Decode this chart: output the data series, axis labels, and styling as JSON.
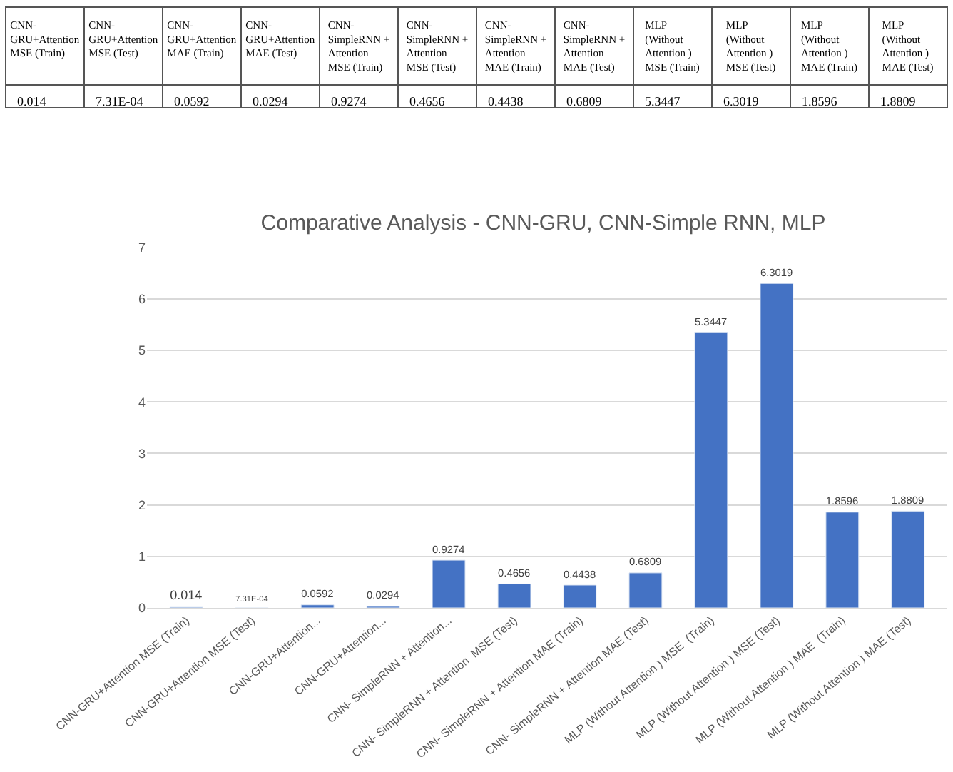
{
  "chart_data": [
    {
      "type": "other",
      "categories": [
        "CNN-GRU+Attention MSE (Train)",
        "CNN-GRU+Attention MSE (Test)",
        "CNN-GRU+Attention MAE (Train)",
        "CNN-GRU+Attention MAE (Test)",
        "CNN-SimpleRNN + Attention MSE (Train)",
        "CNN-SimpleRNN + Attention MSE (Test)",
        "CNN-SimpleRNN + Attention MAE (Train)",
        "CNN-SimpleRNN + Attention MAE (Test)",
        "MLP (Without Attention ) MSE (Train)",
        "MLP (Without Attention ) MSE (Test)",
        "MLP (Without Attention ) MAE (Train)",
        "MLP (Without Attention ) MAE (Test)"
      ],
      "values": [
        0.014,
        0.000731,
        0.0592,
        0.0294,
        0.9274,
        0.4656,
        0.4438,
        0.6809,
        5.3447,
        6.3019,
        1.8596,
        1.8809
      ],
      "value_labels": [
        "0.014",
        "7.31E-04",
        "0.0592",
        "0.0294",
        "0.9274",
        "0.4656",
        "0.4438",
        "0.6809",
        "5.3447",
        "6.3019",
        "1.8596",
        "1.8809"
      ]
    },
    {
      "type": "bar",
      "title": "Comparative Analysis - CNN-GRU, CNN-Simple RNN, MLP",
      "categories": [
        "CNN-GRU+Attention MSE (Train)",
        "CNN-GRU+Attention MSE (Test)",
        "CNN-GRU+Attention...",
        "CNN-GRU+Attention...",
        "CNN- SimpleRNN + Attention...",
        "CNN- SimpleRNN + Attention  MSE (Test)",
        "CNN- SimpleRNN + Attention MAE (Train)",
        "CNN- SimpleRNN + Attention MAE (Test)",
        "MLP (Without Attention ) MSE  (Train)",
        "MLP (Without Attention ) MSE (Test)",
        "MLP (Without Attention ) MAE  (Train)",
        "MLP (Without Attention ) MAE (Test)"
      ],
      "values": [
        0.014,
        0.000731,
        0.0592,
        0.0294,
        0.9274,
        0.4656,
        0.4438,
        0.6809,
        5.3447,
        6.3019,
        1.8596,
        1.8809
      ],
      "value_labels": [
        "0.014",
        "7.31E-04",
        "0.0592",
        "0.0294",
        "0.9274",
        "0.4656",
        "0.4438",
        "0.6809",
        "5.3447",
        "6.3019",
        "1.8596",
        "1.8809"
      ],
      "color": "#4472c4",
      "ylim": [
        0,
        7
      ],
      "yticks": [
        0,
        1,
        2,
        3,
        4,
        5,
        6,
        7
      ],
      "grid": "y"
    }
  ]
}
